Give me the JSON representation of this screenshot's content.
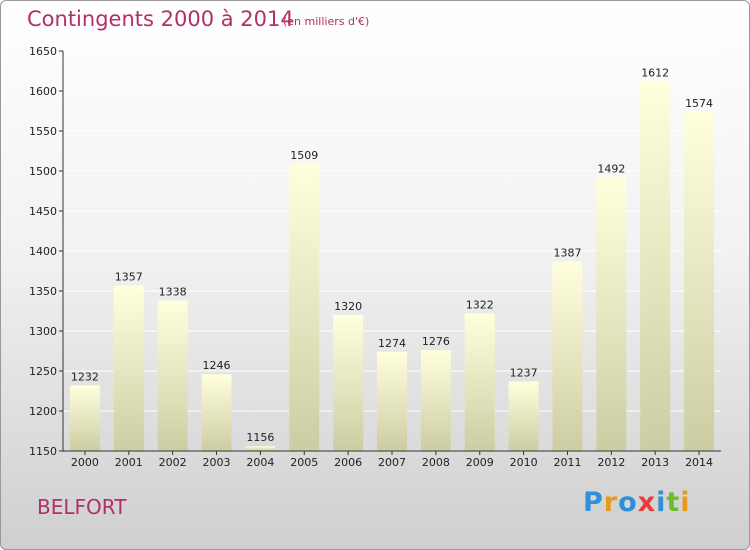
{
  "header": {
    "title": "Contingents 2000 à 2014",
    "subtitle": "(en milliers d'€)"
  },
  "footer": {
    "place": "BELFORT",
    "logo_letters": [
      "P",
      "r",
      "o",
      "x",
      "i",
      "t",
      "i"
    ]
  },
  "colors": {
    "title": "#b2306a",
    "bar_top": "#ffffdd",
    "bar_bottom": "#cdcda4",
    "axis": "#333333",
    "grid": "#ffffff",
    "logo": [
      "#2f8fd8",
      "#e89a1c",
      "#2f8fd8",
      "#e83c3c",
      "#2f8fd8",
      "#6cbf2a",
      "#e89a1c"
    ]
  },
  "chart_data": {
    "type": "bar",
    "title": "Contingents 2000 à 2014",
    "subtitle": "(en milliers d'€)",
    "categories": [
      "2000",
      "2001",
      "2002",
      "2003",
      "2004",
      "2005",
      "2006",
      "2007",
      "2008",
      "2009",
      "2010",
      "2011",
      "2012",
      "2013",
      "2014"
    ],
    "values": [
      1232,
      1357,
      1338,
      1246,
      1156,
      1509,
      1320,
      1274,
      1276,
      1322,
      1237,
      1387,
      1492,
      1612,
      1574
    ],
    "ylim": [
      1150,
      1650
    ],
    "yticks": [
      1150,
      1200,
      1250,
      1300,
      1350,
      1400,
      1450,
      1500,
      1550,
      1600,
      1650
    ],
    "grid": true,
    "data_labels": true
  }
}
